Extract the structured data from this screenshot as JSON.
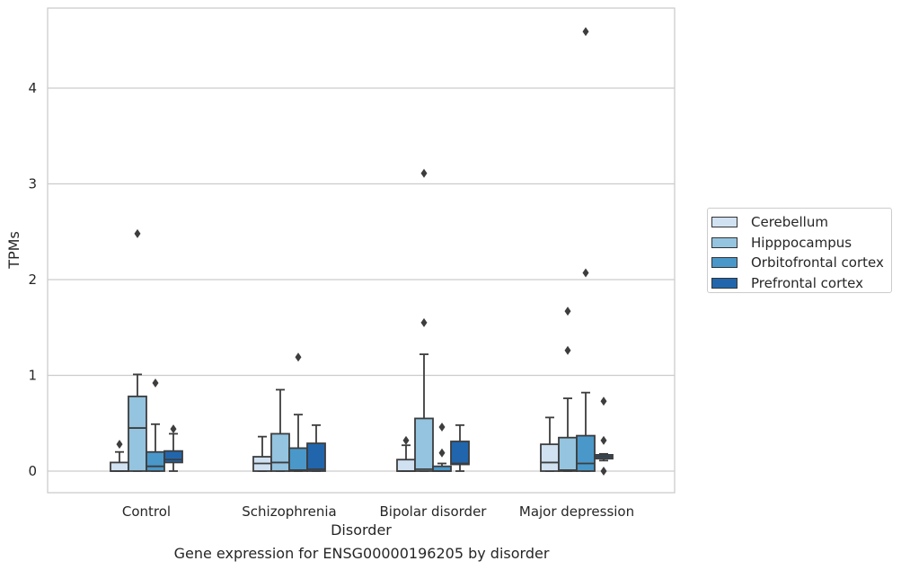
{
  "chart_data": {
    "type": "box",
    "caption": "Gene expression for ENSG00000196205 by disorder",
    "xlabel": "Disorder",
    "ylabel": "TPMs",
    "ylim": [
      -0.22,
      4.85
    ],
    "yticks": [
      0,
      1,
      2,
      3,
      4
    ],
    "grid": "horizontal",
    "legend_position": "right",
    "categories": [
      "Control",
      "Schizophrenia",
      "Bipolar disorder",
      "Major depression"
    ],
    "series": [
      {
        "name": "Cerebellum",
        "color": "#d0e1f2",
        "boxes": [
          {
            "whisker_low": 0.0,
            "q1": 0.0,
            "median": 0.0,
            "q3": 0.09,
            "whisker_high": 0.2,
            "outliers": [
              0.28
            ]
          },
          {
            "whisker_low": 0.0,
            "q1": 0.0,
            "median": 0.08,
            "q3": 0.15,
            "whisker_high": 0.36,
            "outliers": []
          },
          {
            "whisker_low": 0.0,
            "q1": 0.0,
            "median": 0.0,
            "q3": 0.12,
            "whisker_high": 0.27,
            "outliers": [
              0.32
            ]
          },
          {
            "whisker_low": 0.0,
            "q1": 0.0,
            "median": 0.09,
            "q3": 0.28,
            "whisker_high": 0.56,
            "outliers": []
          }
        ]
      },
      {
        "name": "Hipppocampus",
        "color": "#94c4df",
        "boxes": [
          {
            "whisker_low": 0.0,
            "q1": 0.0,
            "median": 0.45,
            "q3": 0.78,
            "whisker_high": 1.01,
            "outliers": [
              2.48
            ]
          },
          {
            "whisker_low": 0.0,
            "q1": 0.0,
            "median": 0.09,
            "q3": 0.39,
            "whisker_high": 0.85,
            "outliers": []
          },
          {
            "whisker_low": 0.0,
            "q1": 0.0,
            "median": 0.02,
            "q3": 0.55,
            "whisker_high": 1.22,
            "outliers": [
              1.55,
              3.11
            ]
          },
          {
            "whisker_low": 0.0,
            "q1": 0.0,
            "median": 0.01,
            "q3": 0.35,
            "whisker_high": 0.76,
            "outliers": [
              1.26,
              1.67
            ]
          }
        ]
      },
      {
        "name": "Orbitofrontal cortex",
        "color": "#4a98c9",
        "boxes": [
          {
            "whisker_low": 0.0,
            "q1": 0.0,
            "median": 0.05,
            "q3": 0.2,
            "whisker_high": 0.49,
            "outliers": [
              0.92
            ]
          },
          {
            "whisker_low": 0.0,
            "q1": 0.0,
            "median": 0.01,
            "q3": 0.24,
            "whisker_high": 0.59,
            "outliers": [
              1.19
            ]
          },
          {
            "whisker_low": 0.0,
            "q1": 0.0,
            "median": 0.0,
            "q3": 0.05,
            "whisker_high": 0.08,
            "outliers": [
              0.19,
              0.46
            ]
          },
          {
            "whisker_low": 0.0,
            "q1": 0.0,
            "median": 0.08,
            "q3": 0.37,
            "whisker_high": 0.82,
            "outliers": [
              2.07,
              4.59
            ]
          }
        ]
      },
      {
        "name": "Prefrontal cortex",
        "color": "#2166ac",
        "boxes": [
          {
            "whisker_low": 0.0,
            "q1": 0.09,
            "median": 0.12,
            "q3": 0.21,
            "whisker_high": 0.39,
            "outliers": [
              0.44
            ]
          },
          {
            "whisker_low": 0.0,
            "q1": 0.0,
            "median": 0.02,
            "q3": 0.29,
            "whisker_high": 0.48,
            "outliers": []
          },
          {
            "whisker_low": 0.0,
            "q1": 0.07,
            "median": 0.08,
            "q3": 0.31,
            "whisker_high": 0.48,
            "outliers": []
          },
          {
            "whisker_low": 0.11,
            "q1": 0.13,
            "median": 0.15,
            "q3": 0.17,
            "whisker_high": 0.18,
            "outliers": [
              0.0,
              0.32,
              0.73
            ]
          }
        ]
      }
    ]
  }
}
